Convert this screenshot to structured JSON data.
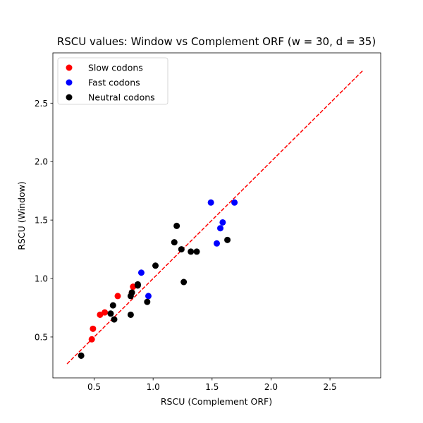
{
  "chart_data": {
    "type": "scatter",
    "title": "RSCU values: Window vs Complement ORF (w = 30, d = 35)",
    "xlabel": "RSCU (Complement ORF)",
    "ylabel": "RSCU (Window)",
    "xlim": [
      0.15,
      2.93
    ],
    "ylim": [
      0.15,
      2.93
    ],
    "x_ticks": [
      {
        "value": 0.5,
        "label": "0.5"
      },
      {
        "value": 1.0,
        "label": "1.0"
      },
      {
        "value": 1.5,
        "label": "1.5"
      },
      {
        "value": 2.0,
        "label": "2.0"
      },
      {
        "value": 2.5,
        "label": "2.5"
      }
    ],
    "y_ticks": [
      {
        "value": 0.5,
        "label": "0.5"
      },
      {
        "value": 1.0,
        "label": "1.0"
      },
      {
        "value": 1.5,
        "label": "1.5"
      },
      {
        "value": 2.0,
        "label": "2.0"
      },
      {
        "value": 2.5,
        "label": "2.5"
      }
    ],
    "grid": false,
    "legend_position": "upper-left",
    "reference_line": {
      "style": "dashed",
      "color": "#ff0000",
      "from": [
        0.27,
        0.27
      ],
      "to": [
        2.78,
        2.78
      ]
    },
    "series": [
      {
        "name": "Slow codons",
        "color": "#ff0000",
        "points": [
          {
            "x": 0.48,
            "y": 0.48
          },
          {
            "x": 0.49,
            "y": 0.57
          },
          {
            "x": 0.55,
            "y": 0.69
          },
          {
            "x": 0.59,
            "y": 0.71
          },
          {
            "x": 0.7,
            "y": 0.85
          },
          {
            "x": 0.82,
            "y": 0.88
          },
          {
            "x": 0.83,
            "y": 0.93
          }
        ]
      },
      {
        "name": "Fast codons",
        "color": "#0000ff",
        "points": [
          {
            "x": 0.9,
            "y": 1.05
          },
          {
            "x": 0.96,
            "y": 0.85
          },
          {
            "x": 1.49,
            "y": 1.65
          },
          {
            "x": 1.54,
            "y": 1.3
          },
          {
            "x": 1.57,
            "y": 1.43
          },
          {
            "x": 1.59,
            "y": 1.48
          },
          {
            "x": 1.69,
            "y": 1.65
          }
        ]
      },
      {
        "name": "Neutral codons",
        "color": "#000000",
        "points": [
          {
            "x": 0.39,
            "y": 0.34
          },
          {
            "x": 0.64,
            "y": 0.7
          },
          {
            "x": 0.66,
            "y": 0.77
          },
          {
            "x": 0.67,
            "y": 0.65
          },
          {
            "x": 0.81,
            "y": 0.69
          },
          {
            "x": 0.81,
            "y": 0.85
          },
          {
            "x": 0.82,
            "y": 0.88
          },
          {
            "x": 0.87,
            "y": 0.94
          },
          {
            "x": 0.87,
            "y": 0.95
          },
          {
            "x": 0.95,
            "y": 0.8
          },
          {
            "x": 1.02,
            "y": 1.11
          },
          {
            "x": 1.18,
            "y": 1.31
          },
          {
            "x": 1.2,
            "y": 1.45
          },
          {
            "x": 1.24,
            "y": 1.25
          },
          {
            "x": 1.26,
            "y": 0.97
          },
          {
            "x": 1.32,
            "y": 1.23
          },
          {
            "x": 1.37,
            "y": 1.23
          },
          {
            "x": 1.63,
            "y": 1.33
          }
        ]
      }
    ]
  }
}
